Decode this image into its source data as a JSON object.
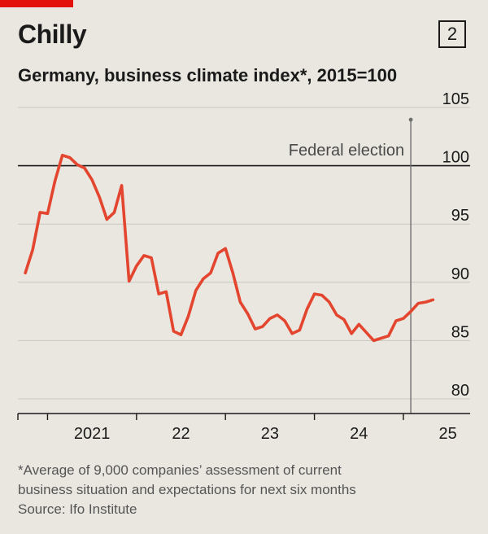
{
  "header": {
    "title": "Chilly",
    "chart_number": "2",
    "subtitle": "Germany, business climate index*, 2015=100"
  },
  "footnote": {
    "note_line1": "*Average of 9,000 companies’ assessment of current",
    "note_line2": "business situation and expectations for next six months",
    "source": "Source: Ifo Institute"
  },
  "colors": {
    "line": "#e3452f",
    "background": "#e9e7e0",
    "grid": "#c9c7c0",
    "marker_line": "#6f6f6f"
  },
  "chart_data": {
    "type": "line",
    "title": "Chilly",
    "subtitle": "Germany, business climate index*, 2015=100",
    "ylim": [
      80,
      105
    ],
    "yticks": [
      80,
      85,
      90,
      95,
      100,
      105
    ],
    "ytick_labels": [
      "80",
      "85",
      "90",
      "95",
      "100",
      "105"
    ],
    "baseline": 100,
    "grid": true,
    "xlim": [
      "2020-09",
      "2025-10"
    ],
    "xtick_labels": [
      "2021",
      "22",
      "23",
      "24",
      "25"
    ],
    "annotation": {
      "label": "Federal election",
      "date": "2025-02"
    },
    "series": [
      {
        "x": [
          "2020-10",
          "2020-11",
          "2020-12",
          "2021-01",
          "2021-02",
          "2021-03",
          "2021-04",
          "2021-05",
          "2021-06",
          "2021-07",
          "2021-08",
          "2021-09",
          "2021-10",
          "2021-11",
          "2021-12",
          "2022-01",
          "2022-02",
          "2022-03",
          "2022-04",
          "2022-05",
          "2022-06",
          "2022-07",
          "2022-08",
          "2022-09",
          "2022-10",
          "2022-11",
          "2022-12",
          "2023-01",
          "2023-02",
          "2023-03",
          "2023-04",
          "2023-05",
          "2023-06",
          "2023-07",
          "2023-08",
          "2023-09",
          "2023-10",
          "2023-11",
          "2023-12",
          "2024-01",
          "2024-02",
          "2024-03",
          "2024-04",
          "2024-05",
          "2024-06",
          "2024-07",
          "2024-08",
          "2024-09",
          "2024-10",
          "2024-11",
          "2024-12",
          "2025-01",
          "2025-02",
          "2025-03",
          "2025-04",
          "2025-05"
        ],
        "values": [
          90.8,
          92.8,
          96.0,
          95.9,
          98.7,
          100.9,
          100.7,
          100.1,
          99.8,
          98.8,
          97.3,
          95.4,
          96.0,
          98.3,
          90.1,
          91.4,
          92.3,
          92.1,
          89.0,
          89.2,
          85.8,
          85.5,
          87.1,
          89.3,
          90.3,
          90.8,
          92.5,
          92.9,
          90.8,
          88.3,
          87.3,
          86.0,
          86.2,
          86.9,
          87.2,
          86.7,
          85.6,
          85.9,
          87.7,
          89.0,
          88.9,
          88.3,
          87.2,
          86.8,
          85.6,
          86.4,
          85.7,
          85.0,
          85.2,
          85.4,
          86.7,
          86.9,
          87.5,
          88.2,
          88.3,
          88.5
        ]
      }
    ]
  }
}
